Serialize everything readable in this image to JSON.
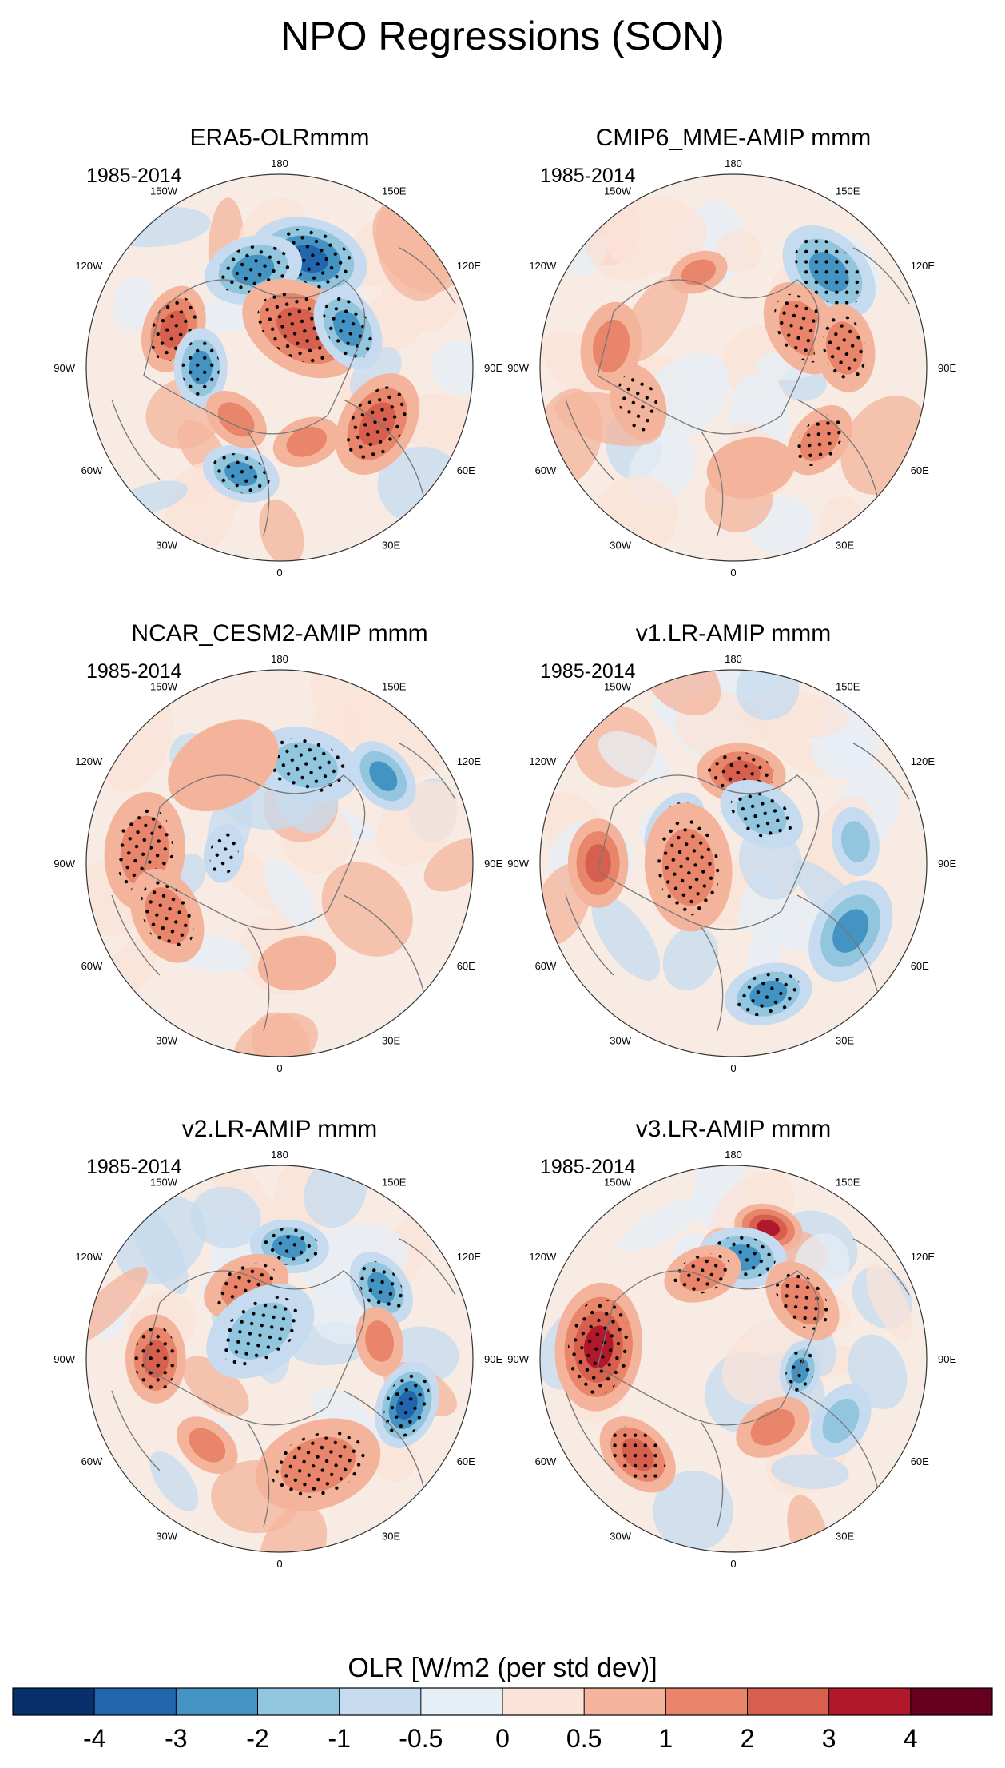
{
  "chart_data": {
    "type": "contour-map",
    "title": "NPO Regressions (SON)",
    "projection": "polar stereographic, Northern Hemisphere",
    "colorbar": {
      "label": "OLR [W/m2 (per std dev)]",
      "levels": [
        "-4",
        "-3",
        "-2",
        "-1",
        "-0.5",
        "0",
        "0.5",
        "1",
        "2",
        "3",
        "4"
      ],
      "colors": [
        "#08306b",
        "#2166ac",
        "#4393c3",
        "#92c5de",
        "#c6dbef",
        "#e6eef6",
        "#fbe3d8",
        "#f4b49c",
        "#e8856a",
        "#d6604d",
        "#b2182b",
        "#67001f"
      ]
    },
    "longitude_labels": [
      "180",
      "150E",
      "120E",
      "90E",
      "60E",
      "30E",
      "0",
      "30W",
      "60W",
      "90W",
      "120W",
      "150W"
    ],
    "panels": [
      {
        "title": "ERA5-OLRmmm",
        "period": "1985-2014",
        "anomalies": [
          {
            "lon": 165,
            "lat": 40,
            "value": -3,
            "size": 1.2,
            "stipple": true
          },
          {
            "lon": -165,
            "lat": 45,
            "value": -2,
            "size": 1.0,
            "stipple": true
          },
          {
            "lon": -110,
            "lat": 40,
            "value": 2,
            "size": 0.9,
            "stipple": true
          },
          {
            "lon": -90,
            "lat": 55,
            "value": -2,
            "size": 0.8,
            "stipple": true
          },
          {
            "lon": 150,
            "lat": 70,
            "value": 2,
            "size": 1.3,
            "stipple": true
          },
          {
            "lon": 120,
            "lat": 55,
            "value": -2,
            "size": 0.9,
            "stipple": true
          },
          {
            "lon": 60,
            "lat": 40,
            "value": 2,
            "size": 1.1,
            "stipple": true
          },
          {
            "lon": -20,
            "lat": 40,
            "value": -2,
            "size": 0.8,
            "stipple": true
          },
          {
            "lon": -40,
            "lat": 60,
            "value": 1,
            "size": 0.7,
            "stipple": false
          },
          {
            "lon": 20,
            "lat": 55,
            "value": 1,
            "size": 0.7,
            "stipple": false
          }
        ]
      },
      {
        "title": "CMIP6_MME-AMIP  mmm",
        "period": "1985-2014",
        "anomalies": [
          {
            "lon": 135,
            "lat": 30,
            "value": -2,
            "size": 1.1,
            "stipple": true
          },
          {
            "lon": 120,
            "lat": 55,
            "value": 1,
            "size": 1.0,
            "stipple": true
          },
          {
            "lon": 100,
            "lat": 40,
            "value": 1,
            "size": 0.9,
            "stipple": true
          },
          {
            "lon": -160,
            "lat": 45,
            "value": 1,
            "size": 0.6,
            "stipple": false
          },
          {
            "lon": -100,
            "lat": 35,
            "value": 1,
            "size": 0.9,
            "stipple": false
          },
          {
            "lon": -70,
            "lat": 45,
            "value": 0.5,
            "size": 0.8,
            "stipple": true
          },
          {
            "lon": 50,
            "lat": 40,
            "value": 1,
            "size": 0.8,
            "stipple": true
          },
          {
            "lon": 10,
            "lat": 45,
            "value": 0.5,
            "size": 0.9,
            "stipple": false
          }
        ]
      },
      {
        "title": "NCAR_CESM2-AMIP  mmm",
        "period": "1985-2014",
        "anomalies": [
          {
            "lon": 165,
            "lat": 45,
            "value": -1,
            "size": 1.1,
            "stipple": true
          },
          {
            "lon": 130,
            "lat": 30,
            "value": -2,
            "size": 0.8,
            "stipple": false
          },
          {
            "lon": -95,
            "lat": 30,
            "value": 1,
            "size": 1.2,
            "stipple": true
          },
          {
            "lon": -65,
            "lat": 35,
            "value": 1,
            "size": 1.0,
            "stipple": true
          },
          {
            "lon": -150,
            "lat": 40,
            "value": 0.5,
            "size": 1.2,
            "stipple": false
          },
          {
            "lon": -100,
            "lat": 65,
            "value": -0.5,
            "size": 0.6,
            "stipple": true
          },
          {
            "lon": 10,
            "lat": 45,
            "value": 0.5,
            "size": 0.8,
            "stipple": false
          }
        ]
      },
      {
        "title": "v1.LR-AMIP  mmm",
        "period": "1985-2014",
        "anomalies": [
          {
            "lon": 175,
            "lat": 50,
            "value": 2,
            "size": 0.9,
            "stipple": true
          },
          {
            "lon": -120,
            "lat": 60,
            "value": -1,
            "size": 0.8,
            "stipple": true
          },
          {
            "lon": 150,
            "lat": 65,
            "value": -1,
            "size": 0.9,
            "stipple": true
          },
          {
            "lon": -85,
            "lat": 70,
            "value": 1,
            "size": 1.3,
            "stipple": true
          },
          {
            "lon": -90,
            "lat": 30,
            "value": 2,
            "size": 0.9,
            "stipple": false
          },
          {
            "lon": 60,
            "lat": 30,
            "value": -2,
            "size": 1.1,
            "stipple": false
          },
          {
            "lon": 15,
            "lat": 30,
            "value": -2,
            "size": 0.9,
            "stipple": true
          },
          {
            "lon": 100,
            "lat": 35,
            "value": -1,
            "size": 0.7,
            "stipple": false
          }
        ]
      },
      {
        "title": "v2.LR-AMIP  mmm",
        "period": "1985-2014",
        "anomalies": [
          {
            "lon": 175,
            "lat": 40,
            "value": -2,
            "size": 0.8,
            "stipple": true
          },
          {
            "lon": -155,
            "lat": 55,
            "value": 1,
            "size": 0.9,
            "stipple": true
          },
          {
            "lon": 125,
            "lat": 35,
            "value": -2,
            "size": 0.8,
            "stipple": true
          },
          {
            "lon": -145,
            "lat": 75,
            "value": -1,
            "size": 1.2,
            "stipple": true
          },
          {
            "lon": -90,
            "lat": 35,
            "value": 2,
            "size": 0.9,
            "stipple": true
          },
          {
            "lon": 70,
            "lat": 30,
            "value": -3,
            "size": 0.9,
            "stipple": true
          },
          {
            "lon": 20,
            "lat": 40,
            "value": 1,
            "size": 1.3,
            "stipple": true
          },
          {
            "lon": -40,
            "lat": 40,
            "value": 1,
            "size": 0.7,
            "stipple": false
          },
          {
            "lon": 100,
            "lat": 45,
            "value": 1,
            "size": 0.7,
            "stipple": false
          }
        ]
      },
      {
        "title": "v3.LR-AMIP  mmm",
        "period": "1985-2014",
        "anomalies": [
          {
            "lon": 165,
            "lat": 30,
            "value": 3,
            "size": 0.7,
            "stipple": false
          },
          {
            "lon": 175,
            "lat": 45,
            "value": -2,
            "size": 0.9,
            "stipple": true
          },
          {
            "lon": -95,
            "lat": 30,
            "value": 3,
            "size": 1.3,
            "stipple": true
          },
          {
            "lon": -45,
            "lat": 30,
            "value": 2,
            "size": 0.9,
            "stipple": true
          },
          {
            "lon": -160,
            "lat": 50,
            "value": 1,
            "size": 0.8,
            "stipple": true
          },
          {
            "lon": 130,
            "lat": 50,
            "value": 1,
            "size": 0.9,
            "stipple": true
          },
          {
            "lon": 80,
            "lat": 60,
            "value": -2,
            "size": 0.6,
            "stipple": true
          },
          {
            "lon": 60,
            "lat": 35,
            "value": -1,
            "size": 0.8,
            "stipple": false
          },
          {
            "lon": 30,
            "lat": 55,
            "value": 1,
            "size": 0.8,
            "stipple": false
          }
        ]
      }
    ]
  }
}
